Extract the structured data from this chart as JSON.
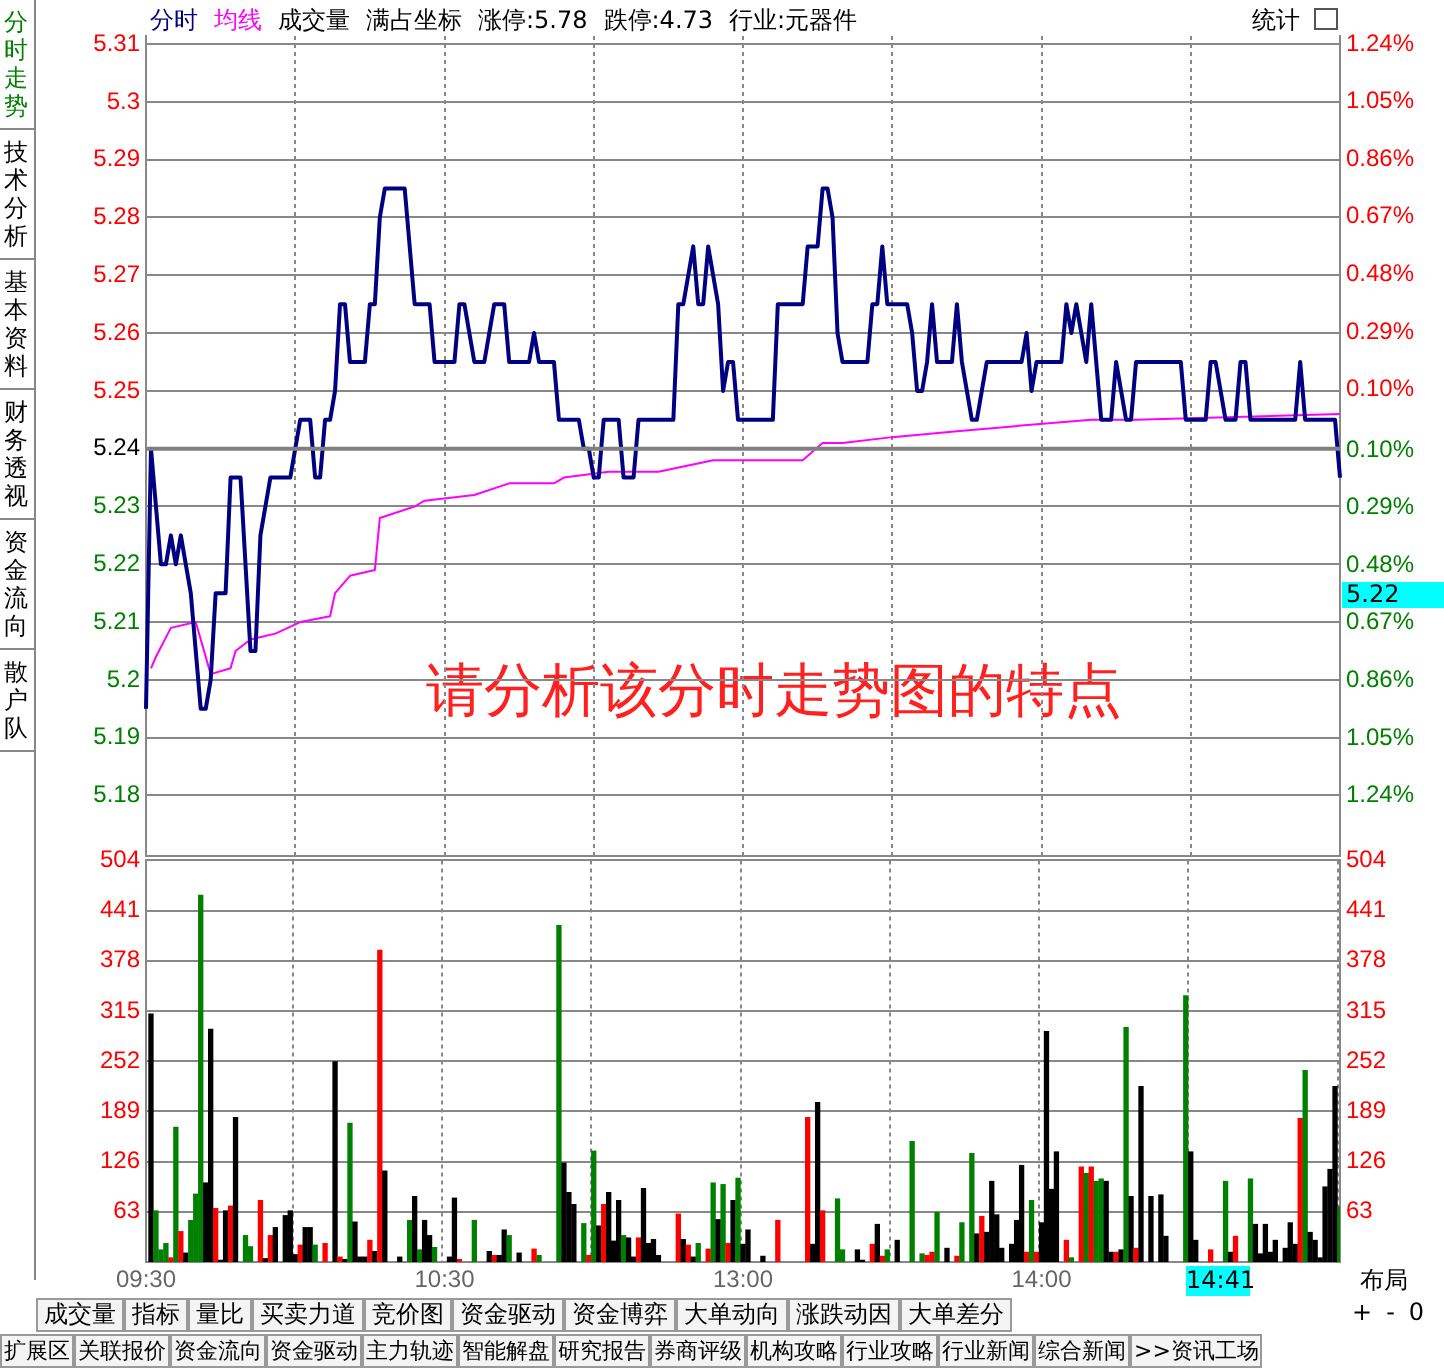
{
  "chart_data": [
    {
      "type": "line",
      "categories": [
        null,
        null,
        null,
        null,
        null,
        null,
        null,
        null,
        null,
        null,
        null,
        null,
        null,
        null,
        null,
        null,
        null,
        null,
        null,
        null,
        null,
        null,
        null,
        null,
        null,
        null,
        null,
        null,
        null,
        null,
        null,
        null,
        null,
        null,
        null,
        null,
        null,
        null,
        null,
        null,
        null,
        null,
        null,
        null,
        null,
        null,
        null,
        null,
        null,
        null,
        null,
        null,
        null,
        null,
        null,
        null,
        null,
        null,
        null,
        null,
        null,
        null,
        null,
        null,
        null,
        null,
        null,
        null,
        null,
        null,
        null,
        null,
        null,
        null,
        null,
        null,
        null,
        null,
        null,
        null,
        null,
        null,
        null,
        null,
        null,
        null,
        null,
        null,
        null,
        null,
        null,
        null,
        null,
        null,
        null,
        null,
        null,
        null,
        null,
        null,
        null,
        null,
        null,
        null,
        null,
        null,
        null,
        null,
        null,
        null,
        null,
        null,
        null,
        null,
        null,
        null,
        null,
        null,
        null,
        null,
        null,
        null,
        null,
        null,
        null,
        null,
        null,
        null,
        null,
        null,
        null,
        null,
        null,
        null,
        null,
        null,
        null,
        null,
        null,
        null,
        null,
        null,
        null,
        null,
        null,
        null,
        null,
        null,
        null,
        null,
        null,
        null,
        null,
        null,
        null,
        null,
        null,
        null,
        null,
        null,
        null,
        null,
        null,
        null,
        null,
        null,
        null,
        null,
        null,
        null,
        null,
        null,
        null,
        null,
        null,
        null,
        null,
        null,
        null,
        null,
        null,
        null,
        null,
        null,
        null,
        null,
        null,
        null,
        null,
        null,
        null,
        null,
        null,
        null,
        null,
        null,
        null,
        null,
        null,
        null,
        null,
        null,
        null,
        null,
        null,
        null,
        null,
        null,
        null,
        null,
        null,
        null,
        null,
        null,
        null,
        null,
        null,
        null,
        null,
        null,
        null,
        null,
        null,
        null,
        null,
        null,
        null,
        null,
        null,
        null,
        null,
        null,
        null,
        null,
        null,
        null,
        null,
        null,
        null,
        null,
        null
      ],
      "series": [
        {
          "name": "分时",
          "color": "#000080",
          "values": [
            5.195,
            5.24,
            5.23,
            5.22,
            5.22,
            5.225,
            5.22,
            5.225,
            5.22,
            5.215,
            5.205,
            5.195,
            5.195,
            5.2,
            5.215,
            5.215,
            5.215,
            5.235,
            5.235,
            5.235,
            5.22,
            5.205,
            5.205,
            5.225,
            5.23,
            5.235,
            5.235,
            5.235,
            5.235,
            5.235,
            5.24,
            5.245,
            5.245,
            5.245,
            5.235,
            5.235,
            5.245,
            5.245,
            5.25,
            5.265,
            5.265,
            5.255,
            5.255,
            5.255,
            5.255,
            5.265,
            5.265,
            5.28,
            5.285,
            5.285,
            5.285,
            5.285,
            5.285,
            5.275,
            5.265,
            5.265,
            5.265,
            5.265,
            5.255,
            5.255,
            5.255,
            5.255,
            5.255,
            5.265,
            5.265,
            5.26,
            5.255,
            5.255,
            5.255,
            5.26,
            5.265,
            5.265,
            5.265,
            5.255,
            5.255,
            5.255,
            5.255,
            5.255,
            5.26,
            5.255,
            5.255,
            5.255,
            5.255,
            5.245,
            5.245,
            5.245,
            5.245,
            5.245,
            5.24,
            5.24,
            5.235,
            5.235,
            5.245,
            5.245,
            5.245,
            5.245,
            5.235,
            5.235,
            5.235,
            5.245,
            5.245,
            5.245,
            5.245,
            5.245,
            5.245,
            5.245,
            5.245,
            5.265,
            5.265,
            5.27,
            5.275,
            5.265,
            5.265,
            5.275,
            5.27,
            5.265,
            5.25,
            5.255,
            5.255,
            5.245,
            5.245,
            5.245,
            5.245,
            5.245,
            5.245,
            5.245,
            5.245,
            5.265,
            5.265,
            5.265,
            5.265,
            5.265,
            5.265,
            5.275,
            5.275,
            5.275,
            5.285,
            5.285,
            5.28,
            5.26,
            5.255,
            5.255,
            5.255,
            5.255,
            5.255,
            5.255,
            5.265,
            5.265,
            5.275,
            5.265,
            5.265,
            5.265,
            5.265,
            5.265,
            5.26,
            5.25,
            5.25,
            5.255,
            5.265,
            5.255,
            5.255,
            5.255,
            5.255,
            5.265,
            5.255,
            5.25,
            5.245,
            5.245,
            5.25,
            5.255,
            5.255,
            5.255,
            5.255,
            5.255,
            5.255,
            5.255,
            5.255,
            5.26,
            5.25,
            5.255,
            5.255,
            5.255,
            5.255,
            5.255,
            5.255,
            5.265,
            5.26,
            5.265,
            5.26,
            5.255,
            5.265,
            5.255,
            5.245,
            5.245,
            5.245,
            5.255,
            5.25,
            5.245,
            5.245,
            5.255,
            5.255,
            5.255,
            5.255,
            5.255,
            5.255,
            5.255,
            5.255,
            5.255,
            5.255,
            5.245,
            5.245,
            5.245,
            5.245,
            5.245,
            5.255,
            5.255,
            5.25,
            5.245,
            5.245,
            5.245,
            5.255,
            5.255,
            5.245,
            5.245,
            5.245,
            5.245,
            5.245,
            5.245,
            5.245,
            5.245,
            5.245,
            5.245,
            5.255,
            5.245,
            5.245,
            5.245,
            5.245,
            5.245,
            5.245,
            5.245,
            5.235
          ]
        },
        {
          "name": "均线",
          "color": "#ff00ff",
          "values": [
            null,
            5.202,
            5.204,
            null,
            null,
            5.209,
            null,
            null,
            null,
            null,
            5.21,
            null,
            null,
            5.201,
            null,
            null,
            null,
            5.202,
            5.205,
            null,
            null,
            5.207,
            null,
            null,
            null,
            null,
            5.208,
            null,
            null,
            null,
            null,
            5.21,
            null,
            null,
            null,
            null,
            null,
            5.211,
            5.215,
            null,
            null,
            5.218,
            null,
            null,
            null,
            null,
            5.219,
            5.228,
            null,
            null,
            null,
            null,
            null,
            null,
            5.23,
            null,
            5.231,
            null,
            null,
            null,
            null,
            null,
            null,
            null,
            null,
            null,
            5.232,
            null,
            null,
            null,
            null,
            null,
            null,
            5.234,
            null,
            null,
            null,
            null,
            null,
            null,
            null,
            null,
            5.234,
            null,
            5.235,
            null,
            null,
            null,
            null,
            null,
            null,
            null,
            null,
            5.236,
            null,
            null,
            null,
            null,
            null,
            null,
            null,
            null,
            null,
            5.236,
            null,
            null,
            null,
            null,
            null,
            null,
            null,
            null,
            null,
            null,
            5.238,
            null,
            null,
            null,
            null,
            5.238,
            null,
            null,
            null,
            null,
            null,
            null,
            null,
            null,
            null,
            null,
            null,
            null,
            5.238,
            null,
            null,
            null,
            5.241,
            null,
            null,
            null,
            5.241,
            null,
            null,
            null,
            null,
            null,
            null,
            null,
            null,
            null,
            5.242,
            null,
            null,
            null,
            null,
            null,
            null,
            null,
            null,
            null,
            null,
            null,
            null,
            5.243,
            null,
            null,
            null,
            null,
            null,
            null,
            null,
            null,
            null,
            null,
            null,
            null,
            5.244,
            null,
            null,
            null,
            null,
            null,
            null,
            null,
            null,
            null,
            null,
            null,
            null,
            null,
            5.245,
            null,
            null,
            null,
            null,
            null,
            null,
            null,
            null,
            5.245,
            null,
            null,
            null,
            null,
            null,
            null,
            null,
            null,
            null,
            null,
            null,
            null,
            null,
            null,
            null,
            null,
            null,
            null,
            null,
            null,
            null,
            null,
            null,
            null,
            null,
            null,
            null,
            null,
            null,
            null,
            null,
            null,
            null,
            null,
            null,
            null,
            null,
            null,
            null,
            null,
            5.246
          ]
        }
      ],
      "ylim": [
        5.1696,
        5.3114
      ],
      "yticks": [
        5.18,
        5.19,
        5.2,
        5.21,
        5.22,
        5.23,
        5.24,
        5.25,
        5.26,
        5.27,
        5.28,
        5.29,
        5.3,
        5.31
      ],
      "y2lim": [
        -1.4379,
        1.2664
      ],
      "y2ticks": [
        {
          "value": -1.24,
          "label": "1.24%"
        },
        {
          "value": -1.05,
          "label": "1.05%"
        },
        {
          "value": -0.86,
          "label": "0.86%"
        },
        {
          "value": -0.67,
          "label": "0.67%"
        },
        {
          "value": -0.48,
          "label": "0.48%"
        },
        {
          "value": -0.29,
          "label": "0.29%"
        },
        {
          "value": -0.1,
          "label": "0.10%"
        },
        {
          "value": 0.1,
          "label": "0.10%"
        },
        {
          "value": 0.29,
          "label": "0.29%"
        },
        {
          "value": 0.48,
          "label": "0.48%"
        },
        {
          "value": 0.67,
          "label": "0.67%"
        },
        {
          "value": 0.86,
          "label": "0.86%"
        },
        {
          "value": 1.05,
          "label": "1.05%"
        },
        {
          "value": 1.24,
          "label": "1.24%"
        }
      ],
      "ref_lines": [
        {
          "axis": "y",
          "value": 5.24,
          "color": "#808080"
        }
      ],
      "grid": true,
      "tick_labels": "y",
      "annotations": [
        "满占坐标",
        "涨停:5.78",
        "跌停:4.73",
        "行业:元器件",
        "统计",
        "请分析该分时走势图的特点",
        "5.22",
        "分时走势",
        "技术分析",
        "基本资料",
        "财务透视",
        "资金流向",
        "散户队",
        "成交量",
        "指标",
        "量比",
        "买卖力道",
        "竞价图",
        "资金驱动",
        "资金博弈",
        "大单动向",
        "涨跌动因",
        "大单差分",
        "扩展区",
        "关联报价",
        "资金流向",
        "资金驱动",
        "主力轨迹",
        "智能解盘",
        "研究报告",
        "券商评级",
        "机构攻略",
        "行业攻略",
        "行业新闻",
        "综合新闻",
        ">>资讯工场",
        "布局",
        "+",
        "-",
        "0"
      ]
    },
    {
      "type": "bar",
      "categories": [
        "09:30",
        null,
        null,
        null,
        null,
        null,
        null,
        null,
        null,
        null,
        null,
        null,
        null,
        null,
        null,
        null,
        null,
        null,
        null,
        null,
        null,
        null,
        null,
        null,
        null,
        null,
        null,
        null,
        null,
        null,
        null,
        null,
        null,
        null,
        null,
        null,
        null,
        null,
        null,
        null,
        null,
        null,
        null,
        null,
        null,
        null,
        null,
        null,
        null,
        null,
        null,
        null,
        null,
        null,
        null,
        null,
        null,
        null,
        null,
        null,
        "10:30",
        null,
        null,
        null,
        null,
        null,
        null,
        null,
        null,
        null,
        null,
        null,
        null,
        null,
        null,
        null,
        null,
        null,
        null,
        null,
        null,
        null,
        null,
        null,
        null,
        null,
        null,
        null,
        null,
        null,
        null,
        null,
        null,
        null,
        null,
        null,
        null,
        null,
        null,
        null,
        null,
        null,
        null,
        null,
        null,
        null,
        null,
        null,
        null,
        null,
        null,
        null,
        null,
        null,
        null,
        null,
        null,
        null,
        null,
        null,
        "13:00",
        null,
        null,
        null,
        null,
        null,
        null,
        null,
        null,
        null,
        null,
        null,
        null,
        null,
        null,
        null,
        null,
        null,
        null,
        null,
        null,
        null,
        null,
        null,
        null,
        null,
        null,
        null,
        null,
        null,
        null,
        null,
        null,
        null,
        null,
        null,
        null,
        null,
        null,
        null,
        null,
        null,
        null,
        null,
        null,
        null,
        null,
        null,
        null,
        null,
        null,
        null,
        null,
        null,
        null,
        null,
        null,
        null,
        null,
        null,
        "14:00",
        null,
        null,
        null,
        null,
        null,
        null,
        null,
        null,
        null,
        null,
        null,
        null,
        null,
        null,
        null,
        null,
        null,
        null,
        null,
        null,
        null,
        null,
        null,
        null,
        null,
        null,
        null,
        null,
        null,
        null,
        null,
        null,
        null,
        null,
        null,
        null,
        null,
        null,
        null,
        null,
        null,
        null,
        null,
        null,
        null,
        null,
        null,
        null,
        null,
        null,
        null,
        null,
        null,
        null,
        null,
        null,
        null,
        null,
        null,
        null
      ],
      "series": [
        {
          "name": "成交量",
          "values": [
            null,
            311,
            64,
            15,
            23,
            5,
            169,
            38,
            11,
            52,
            85,
            460,
            99,
            292,
            67,
            2,
            64,
            70,
            181,
            null,
            33,
            19,
            null,
            77,
            4,
            33,
            43,
            null,
            58,
            64,
            9,
            21,
            43,
            43,
            21,
            null,
            23,
            null,
            251,
            6,
            3,
            174,
            50,
            6,
            6,
            27,
            13,
            391,
            114,
            null,
            null,
            6,
            null,
            52,
            82,
            15,
            52,
            33,
            18,
            null,
            null,
            6,
            80,
            3,
            null,
            null,
            52,
            null,
            null,
            13,
            8,
            8,
            40,
            33,
            null,
            11,
            null,
            null,
            16,
            8,
            null,
            null,
            null,
            422,
            124,
            87,
            72,
            null,
            48,
            8,
            139,
            45,
            72,
            87,
            26,
            77,
            33,
            30,
            6,
            30,
            92,
            23,
            28,
            8,
            null,
            null,
            null,
            60,
            28,
            21,
            6,
            23,
            null,
            16,
            99,
            53,
            97,
            23,
            77,
            105,
            22,
            40,
            null,
            null,
            7,
            null,
            null,
            52,
            null,
            null,
            null,
            null,
            null,
            181,
            22,
            200,
            64,
            null,
            null,
            79,
            15,
            null,
            null,
            15,
            2,
            null,
            22,
            47,
            7,
            15,
            null,
            27,
            null,
            null,
            151,
            null,
            10,
            8,
            12,
            62,
            null,
            17,
            null,
            7,
            49,
            null,
            136,
            35,
            57,
            37,
            101,
            59,
            17,
            null,
            22,
            52,
            121,
            12,
            77,
            12,
            49,
            289,
            91,
            138,
            null,
            27,
            5,
            null,
            119,
            111,
            119,
            101,
            104,
            101,
            12,
            12,
            15,
            294,
            82,
            17,
            220,
            null,
            82,
            null,
            84,
            32,
            null,
            null,
            null,
            334,
            138,
            27,
            null,
            null,
            15,
            null,
            null,
            101,
            12,
            32,
            null,
            null,
            104,
            47,
            10,
            47,
            12,
            27,
            null,
            17,
            49,
            22,
            180,
            240,
            37,
            27,
            5,
            94,
            116,
            220,
            69
          ],
          "colors": [
            null,
            "#000000",
            "#008000",
            "#008000",
            "#008000",
            "#ff0000",
            "#008000",
            "#ff0000",
            "#000000",
            "#008000",
            "#008000",
            "#008000",
            "#000000",
            "#000000",
            "#ff0000",
            "#000000",
            "#000000",
            "#ff0000",
            "#000000",
            null,
            "#008000",
            "#008000",
            null,
            "#ff0000",
            "#000000",
            "#ff0000",
            "#000000",
            null,
            "#000000",
            "#000000",
            "#000000",
            "#ff0000",
            "#000000",
            "#000000",
            "#008000",
            null,
            "#ff0000",
            null,
            "#000000",
            "#ff0000",
            "#000000",
            "#008000",
            "#000000",
            "#000000",
            "#000000",
            "#ff0000",
            "#000000",
            "#ff0000",
            "#000000",
            null,
            null,
            "#000000",
            null,
            "#008000",
            "#000000",
            "#008000",
            "#000000",
            "#000000",
            "#008000",
            null,
            null,
            "#000000",
            "#000000",
            "#ff0000",
            null,
            null,
            "#008000",
            null,
            null,
            "#000000",
            "#ff0000",
            "#000000",
            "#000000",
            "#008000",
            null,
            "#000000",
            null,
            null,
            "#ff0000",
            "#008000",
            null,
            null,
            null,
            "#008000",
            "#000000",
            "#000000",
            "#000000",
            null,
            "#008000",
            "#ff0000",
            "#008000",
            "#000000",
            "#ff0000",
            "#000000",
            "#000000",
            "#000000",
            "#008000",
            "#000000",
            "#000000",
            "#ff0000",
            "#000000",
            "#000000",
            "#000000",
            "#000000",
            null,
            null,
            null,
            "#ff0000",
            "#000000",
            "#ff0000",
            "#000000",
            "#008000",
            null,
            "#ff0000",
            "#008000",
            "#000000",
            "#008000",
            "#ff0000",
            "#000000",
            "#008000",
            "#000000",
            "#000000",
            null,
            null,
            "#000000",
            null,
            null,
            "#ff0000",
            null,
            null,
            null,
            null,
            null,
            "#ff0000",
            "#000000",
            "#000000",
            "#ff0000",
            null,
            null,
            "#008000",
            "#008000",
            null,
            null,
            "#000000",
            "#000000",
            null,
            "#ff0000",
            "#000000",
            "#ff0000",
            "#008000",
            null,
            "#000000",
            null,
            null,
            "#008000",
            null,
            "#008000",
            "#ff0000",
            "#ff0000",
            "#008000",
            null,
            "#000000",
            null,
            "#ff0000",
            "#008000",
            null,
            "#008000",
            "#000000",
            "#ff0000",
            "#000000",
            "#000000",
            "#000000",
            "#000000",
            null,
            "#000000",
            "#000000",
            "#000000",
            "#ff0000",
            "#008000",
            "#ff0000",
            "#000000",
            "#000000",
            "#000000",
            "#000000",
            null,
            "#ff0000",
            "#008000",
            null,
            "#ff0000",
            "#008000",
            "#ff0000",
            "#008000",
            "#008000",
            "#000000",
            "#000000",
            "#ff0000",
            "#000000",
            "#008000",
            "#000000",
            "#ff0000",
            "#000000",
            null,
            "#000000",
            null,
            "#000000",
            "#000000",
            null,
            null,
            null,
            "#008000",
            "#000000",
            "#000000",
            null,
            null,
            "#ff0000",
            null,
            null,
            "#008000",
            "#000000",
            "#ff0000",
            null,
            null,
            "#008000",
            "#000000",
            "#000000",
            "#000000",
            "#000000",
            "#000000",
            null,
            "#000000",
            "#000000",
            "#000000",
            "#ff0000",
            "#008000",
            "#000000",
            "#000000",
            "#000000",
            "#000000",
            "#000000",
            "#000000",
            "#008000"
          ]
        }
      ],
      "ylim": [
        0,
        504
      ],
      "yticks": [
        63,
        126,
        189,
        252,
        315,
        378,
        441,
        504
      ],
      "y2lim": [
        0,
        504
      ],
      "y2ticks": [
        63,
        126,
        189,
        252,
        315,
        378,
        441,
        504
      ],
      "grid": true,
      "annotations": [
        "14:41"
      ]
    }
  ]
}
